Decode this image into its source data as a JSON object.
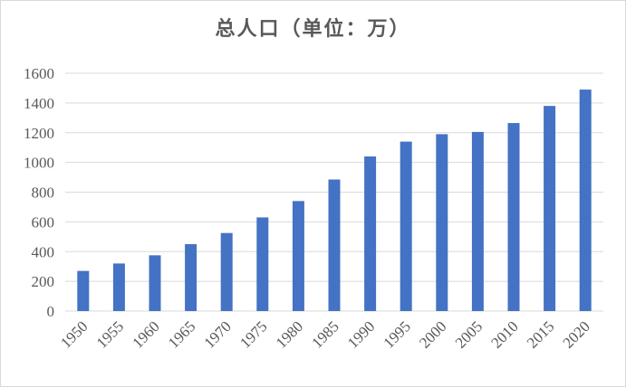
{
  "chart_data": {
    "type": "bar",
    "title": "总人口（单位：万）",
    "categories": [
      "1950",
      "1955",
      "1960",
      "1965",
      "1970",
      "1975",
      "1980",
      "1985",
      "1990",
      "1995",
      "2000",
      "2005",
      "2010",
      "2015",
      "2020"
    ],
    "values": [
      270,
      320,
      375,
      450,
      525,
      630,
      740,
      885,
      1040,
      1140,
      1190,
      1205,
      1265,
      1380,
      1490
    ],
    "ylim": [
      0,
      1600
    ],
    "yticks": [
      0,
      200,
      400,
      600,
      800,
      1000,
      1200,
      1400,
      1600
    ],
    "xlabel": "",
    "ylabel": "",
    "grid": true,
    "legend": "none",
    "bar_color": "#4472c4",
    "grid_color": "#d9d9d9",
    "axis_color": "#d9d9d9",
    "text_color": "#595959"
  }
}
